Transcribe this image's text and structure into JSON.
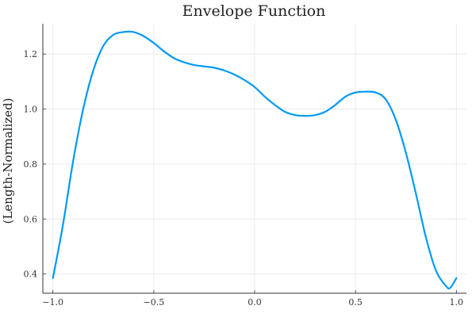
{
  "chart_data": {
    "type": "line",
    "title": "Envelope Function",
    "xlabel": "",
    "ylabel": "(Length-Normalized)",
    "xlim": [
      -1.05,
      1.05
    ],
    "ylim": [
      0.33,
      1.31
    ],
    "grid": true,
    "legend": "none",
    "x_ticks": [
      -1.0,
      -0.5,
      0.0,
      0.5,
      1.0
    ],
    "x_tick_labels": [
      "−1.0",
      "−0.5",
      "0.0",
      "0.5",
      "1.0"
    ],
    "y_ticks": [
      0.4,
      0.6,
      0.8,
      1.0,
      1.2
    ],
    "y_tick_labels": [
      "0.4",
      "0.6",
      "0.8",
      "1.0",
      "1.2"
    ],
    "series": [
      {
        "color": "#009AFA",
        "x": [
          -1.0,
          -0.95,
          -0.9,
          -0.85,
          -0.8,
          -0.75,
          -0.7,
          -0.65,
          -0.6,
          -0.55,
          -0.5,
          -0.45,
          -0.4,
          -0.35,
          -0.3,
          -0.25,
          -0.2,
          -0.15,
          -0.1,
          -0.05,
          0.0,
          0.05,
          0.1,
          0.15,
          0.2,
          0.25,
          0.3,
          0.35,
          0.4,
          0.45,
          0.5,
          0.55,
          0.6,
          0.65,
          0.7,
          0.75,
          0.8,
          0.85,
          0.9,
          0.95,
          0.97,
          1.0
        ],
        "values": [
          0.385,
          0.58,
          0.81,
          1.0,
          1.14,
          1.23,
          1.27,
          1.28,
          1.28,
          1.265,
          1.24,
          1.21,
          1.185,
          1.17,
          1.16,
          1.155,
          1.15,
          1.14,
          1.125,
          1.105,
          1.08,
          1.045,
          1.015,
          0.99,
          0.978,
          0.975,
          0.978,
          0.99,
          1.015,
          1.045,
          1.06,
          1.063,
          1.06,
          1.035,
          0.96,
          0.84,
          0.69,
          0.53,
          0.41,
          0.355,
          0.35,
          0.385
        ]
      }
    ]
  }
}
